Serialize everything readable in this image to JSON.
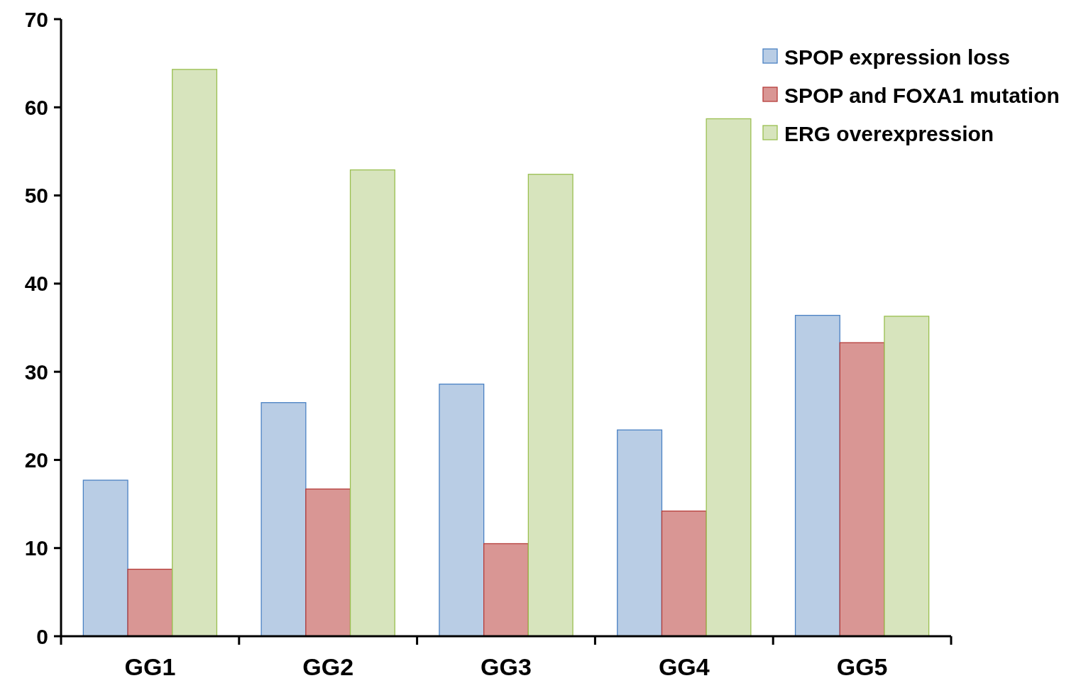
{
  "chart_data": {
    "type": "bar",
    "categories": [
      "GG1",
      "GG2",
      "GG3",
      "GG4",
      "GG5"
    ],
    "series": [
      {
        "name": "SPOP expression loss",
        "color": "#b9cde5",
        "values": [
          17.7,
          26.5,
          28.6,
          23.4,
          36.4
        ]
      },
      {
        "name": "SPOP and FOXA1 mutation",
        "color": "#d99694",
        "values": [
          7.6,
          16.7,
          10.5,
          14.2,
          33.3
        ]
      },
      {
        "name": "ERG overexpression",
        "color": "#d7e4bd",
        "values": [
          64.3,
          52.9,
          52.4,
          58.7,
          36.3
        ]
      }
    ],
    "ylim": [
      0,
      70
    ],
    "yticks": [
      0,
      10,
      20,
      30,
      40,
      50,
      60,
      70
    ],
    "grid": false,
    "legend": "top right"
  }
}
